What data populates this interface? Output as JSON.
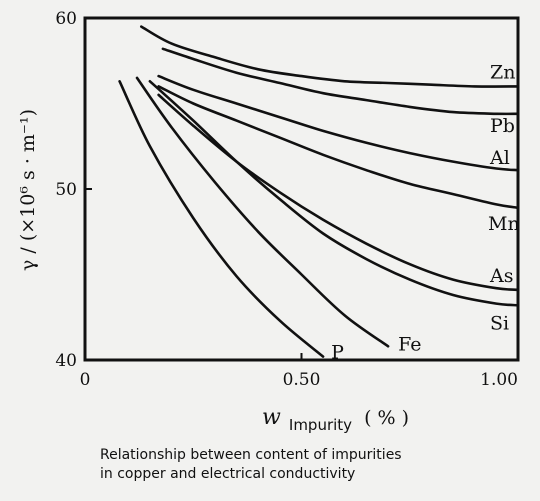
{
  "chart_data": {
    "type": "line",
    "title": "",
    "xlabel_main": "w",
    "xlabel_sub": "Impurity",
    "xlabel_unit": "( % )",
    "ylabel": "γ / (×10⁶ s · m⁻¹)",
    "xlim": [
      0,
      1.0
    ],
    "ylim": [
      40,
      60
    ],
    "x_ticks": [
      {
        "value": 0,
        "label": "0"
      },
      {
        "value": 0.5,
        "label": "0.50"
      },
      {
        "value": 1.0,
        "label": "1.00"
      }
    ],
    "y_ticks": [
      {
        "value": 40,
        "label": "40"
      },
      {
        "value": 50,
        "label": "50"
      },
      {
        "value": 60,
        "label": "60"
      }
    ],
    "grid": false,
    "legend": "labels at curve ends",
    "series": [
      {
        "name": "Zn",
        "x": [
          0.13,
          0.2,
          0.3,
          0.4,
          0.5,
          0.6,
          0.7,
          0.8,
          0.9,
          1.0
        ],
        "y": [
          59.5,
          58.5,
          57.7,
          57.0,
          56.6,
          56.3,
          56.2,
          56.1,
          56.0,
          56.0
        ]
      },
      {
        "name": "Pb",
        "x": [
          0.18,
          0.25,
          0.35,
          0.45,
          0.55,
          0.65,
          0.75,
          0.85,
          0.95,
          1.0
        ],
        "y": [
          58.2,
          57.6,
          56.8,
          56.2,
          55.6,
          55.2,
          54.8,
          54.5,
          54.4,
          54.4
        ]
      },
      {
        "name": "Al",
        "x": [
          0.17,
          0.25,
          0.35,
          0.45,
          0.55,
          0.65,
          0.75,
          0.85,
          0.95,
          1.0
        ],
        "y": [
          56.6,
          55.8,
          55.0,
          54.2,
          53.4,
          52.7,
          52.1,
          51.6,
          51.2,
          51.1
        ]
      },
      {
        "name": "Mn",
        "x": [
          0.17,
          0.25,
          0.35,
          0.45,
          0.55,
          0.65,
          0.75,
          0.85,
          0.95,
          1.0
        ],
        "y": [
          56.0,
          55.0,
          54.0,
          53.0,
          52.0,
          51.1,
          50.3,
          49.7,
          49.1,
          48.9
        ]
      },
      {
        "name": "As",
        "x": [
          0.17,
          0.25,
          0.35,
          0.45,
          0.55,
          0.65,
          0.75,
          0.85,
          0.95,
          1.0
        ],
        "y": [
          55.5,
          53.7,
          51.6,
          49.8,
          48.2,
          46.8,
          45.6,
          44.7,
          44.2,
          44.1
        ]
      },
      {
        "name": "Si",
        "x": [
          0.15,
          0.25,
          0.35,
          0.45,
          0.55,
          0.65,
          0.75,
          0.85,
          0.95,
          1.0
        ],
        "y": [
          56.3,
          54.0,
          51.6,
          49.4,
          47.4,
          45.9,
          44.7,
          43.8,
          43.3,
          43.2
        ]
      },
      {
        "name": "Fe",
        "x": [
          0.12,
          0.2,
          0.3,
          0.4,
          0.5,
          0.6,
          0.7
        ],
        "y": [
          56.5,
          53.6,
          50.4,
          47.5,
          45.0,
          42.6,
          40.8
        ]
      },
      {
        "name": "P",
        "x": [
          0.08,
          0.15,
          0.25,
          0.35,
          0.45,
          0.55
        ],
        "y": [
          56.3,
          52.5,
          48.3,
          44.9,
          42.3,
          40.2
        ]
      }
    ]
  },
  "caption": {
    "line1": "Relationship between content of impurities",
    "line2": "in copper and electrical conductivity"
  }
}
